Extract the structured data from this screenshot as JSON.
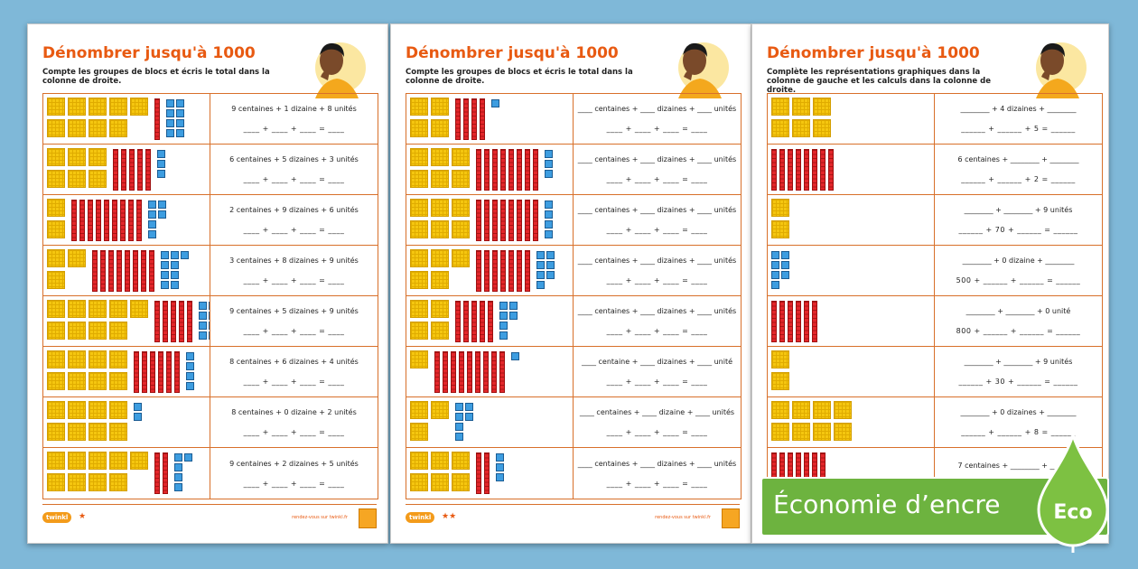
{
  "sheets": [
    {
      "title": "Dénombrer jusqu'à 1000",
      "instruction": "Compte les groupes de blocs et écris le total dans la colonne de droite.",
      "stars": "★",
      "logo": "twinkl",
      "url": "rendez-vous sur twinkl.fr",
      "rows": [
        {
          "line1": "9 centaines + 1 dizaine + 8 unités",
          "line2": "____ + ____ + ____ = ____"
        },
        {
          "line1": "6 centaines + 5 dizaines + 3 unités",
          "line2": "____ + ____ + ____ = ____"
        },
        {
          "line1": "2 centaines + 9 dizaines + 6 unités",
          "line2": "____ + ____ + ____ = ____"
        },
        {
          "line1": "3 centaines + 8 dizaines + 9 unités",
          "line2": "____ + ____ + ____ = ____"
        },
        {
          "line1": "9 centaines + 5 dizaines + 9 unités",
          "line2": "____ + ____ + ____ = ____"
        },
        {
          "line1": "8 centaines + 6 dizaines + 4 unités",
          "line2": "____ + ____ + ____ = ____"
        },
        {
          "line1": "8 centaines + 0 dizaine + 2 unités",
          "line2": "____ + ____ + ____ = ____"
        },
        {
          "line1": "9 centaines + 2 dizaines + 5 unités",
          "line2": "____ + ____ + ____ = ____"
        }
      ]
    },
    {
      "title": "Dénombrer jusqu'à 1000",
      "instruction": "Compte les groupes de blocs et écris le total dans la colonne de droite.",
      "stars": "★★",
      "logo": "twinkl",
      "url": "rendez-vous sur twinkl.fr",
      "rows": [
        {
          "line1": "____ centaines + ____ dizaines + ____ unités",
          "line2": "____ + ____ + ____ = ____"
        },
        {
          "line1": "____ centaines + ____ dizaines + ____ unités",
          "line2": "____ + ____ + ____ = ____"
        },
        {
          "line1": "____ centaines + ____ dizaines + ____ unités",
          "line2": "____ + ____ + ____ = ____"
        },
        {
          "line1": "____ centaines + ____ dizaines + ____ unités",
          "line2": "____ + ____ + ____ = ____"
        },
        {
          "line1": "____ centaines + ____ dizaines + ____ unités",
          "line2": "____ + ____ + ____ = ____"
        },
        {
          "line1": "____ centaine + ____ dizaines + ____ unité",
          "line2": "____ + ____ + ____ = ____"
        },
        {
          "line1": "____ centaines + ____ dizaine + ____ unités",
          "line2": "____ + ____ + ____ = ____"
        },
        {
          "line1": "____ centaines + ____ dizaines + ____ unités",
          "line2": "____ + ____ + ____ = ____"
        }
      ]
    },
    {
      "title": "Dénombrer jusqu'à 1000",
      "instruction": "Complète les représentations graphiques dans la colonne de gauche et les calculs dans la colonne de droite.",
      "rows": [
        {
          "line1": "________ + 4 dizaines + ________",
          "line2": "______ + ______ + 5 = ______"
        },
        {
          "line1": "6 centaines + ________ + ________",
          "line2": "______ + ______ + 2 = ______"
        },
        {
          "line1": "________ + ________ + 9 unités",
          "line2": "______ + 70 + ______ = ______"
        },
        {
          "line1": "________ + 0 dizaine + ________",
          "line2": "500 + ______ + ______ = ______"
        },
        {
          "line1": "________ + ________ + 0 unité",
          "line2": "800 + ______ + ______ = ______"
        },
        {
          "line1": "________ + ________ + 9 unités",
          "line2": "______ + 30 + ______ = ______"
        },
        {
          "line1": "________ + 0 dizaines + ________",
          "line2": "______ + ______ + 8 = ______"
        },
        {
          "line1": "7 centaines + ________ + ________",
          "line2": ""
        }
      ]
    }
  ],
  "blocks": {
    "s1": [
      [
        9,
        1,
        8
      ],
      [
        6,
        5,
        3
      ],
      [
        2,
        9,
        6
      ],
      [
        3,
        8,
        9
      ],
      [
        9,
        5,
        9
      ],
      [
        8,
        6,
        4
      ],
      [
        8,
        0,
        2
      ],
      [
        9,
        2,
        5
      ]
    ],
    "s2": [
      [
        4,
        4,
        1
      ],
      [
        6,
        8,
        3
      ],
      [
        6,
        8,
        4
      ],
      [
        5,
        7,
        7
      ],
      [
        4,
        5,
        6
      ],
      [
        1,
        9,
        1
      ],
      [
        3,
        0,
        6
      ],
      [
        6,
        2,
        3
      ]
    ],
    "s3": [
      [
        6,
        0,
        0
      ],
      [
        0,
        8,
        0
      ],
      [
        2,
        0,
        0
      ],
      [
        0,
        0,
        7
      ],
      [
        0,
        6,
        0
      ],
      [
        2,
        0,
        0
      ],
      [
        8,
        0,
        0
      ],
      [
        0,
        7,
        0
      ]
    ]
  },
  "eco_banner": {
    "label": "Économie d’encre",
    "badge": "Eco"
  },
  "colors": {
    "title": "#e85a12",
    "border": "#d8702a",
    "hundreds": "#f5c60f",
    "tens": "#e3262a",
    "units": "#3d9de0",
    "eco": "#6db33f"
  }
}
